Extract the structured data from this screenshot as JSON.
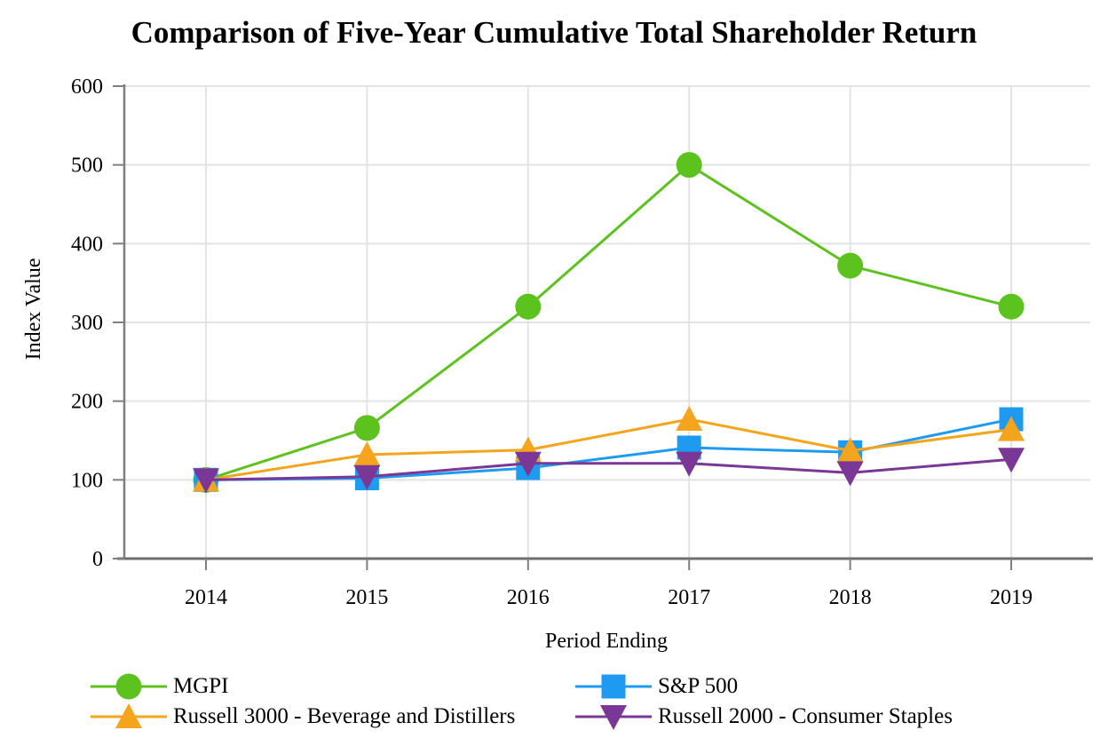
{
  "title": "Comparison of Five-Year Cumulative Total Shareholder Return",
  "chart_data": {
    "type": "line",
    "title": "Comparison of Five-Year Cumulative Total Shareholder Return",
    "xlabel": "Period Ending",
    "ylabel": "Index Value",
    "categories": [
      "2014",
      "2015",
      "2016",
      "2017",
      "2018",
      "2019"
    ],
    "ylim": [
      0,
      600
    ],
    "yticks": [
      0,
      100,
      200,
      300,
      400,
      500,
      600
    ],
    "grid": true,
    "gridline_color": "#e3e3e3",
    "axis_color": "#7f7f7f",
    "legend_position": "bottom",
    "series": [
      {
        "name": "MGPI",
        "color": "#5cc21e",
        "marker": "circle",
        "values": [
          100,
          166,
          320,
          500,
          372,
          320
        ]
      },
      {
        "name": "S&P 500",
        "color": "#1e9bf0",
        "marker": "square",
        "values": [
          100,
          102,
          115,
          141,
          135,
          177
        ]
      },
      {
        "name": "Russell 3000 - Beverage and Distillers",
        "color": "#f5a41d",
        "marker": "triangle-up",
        "values": [
          100,
          132,
          138,
          177,
          137,
          164
        ]
      },
      {
        "name": "Russell 2000 - Consumer Staples",
        "color": "#7b3796",
        "marker": "triangle-down",
        "values": [
          100,
          104,
          121,
          121,
          109,
          126
        ]
      }
    ]
  }
}
